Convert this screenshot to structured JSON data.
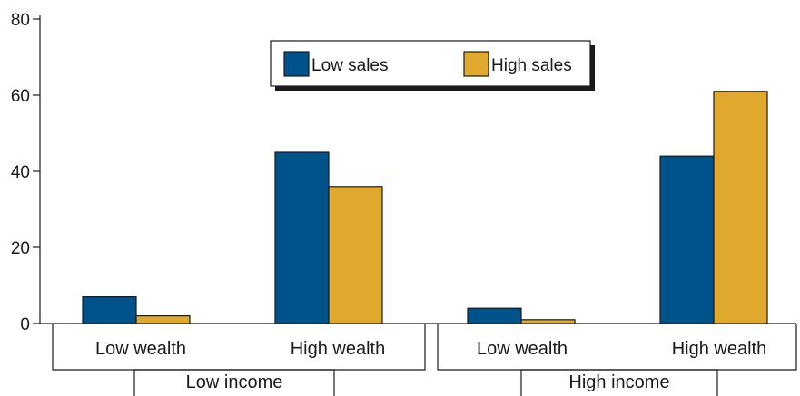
{
  "chart_data": {
    "type": "bar",
    "categories": [
      "Low wealth",
      "High wealth",
      "Low wealth",
      "High wealth"
    ],
    "groups": [
      "Low income",
      "High income"
    ],
    "series": [
      {
        "name": "Low sales",
        "values": [
          7,
          45,
          4,
          44
        ]
      },
      {
        "name": "High sales",
        "values": [
          2,
          36,
          1,
          61
        ]
      }
    ],
    "yticks": [
      "0",
      "20",
      "40",
      "60",
      "80"
    ],
    "ylim": [
      0,
      80
    ],
    "legend_position": "top-center",
    "grid": false
  },
  "colors": {
    "low_sales": "#00538a",
    "high_sales": "#e0a82c",
    "stroke": "#1a1a1a",
    "shadow": "#1a1a1a"
  }
}
